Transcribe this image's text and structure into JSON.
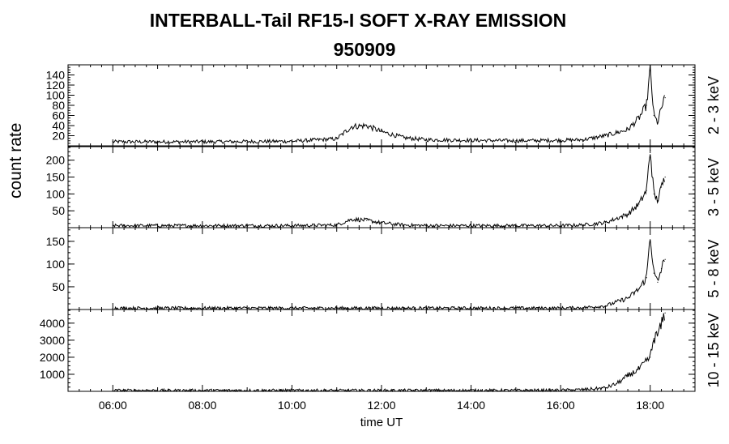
{
  "title_line1": "INTERBALL-Tail RF15-I SOFT X-RAY EMISSION",
  "title_line2": "950909",
  "ylabel": "count rate",
  "chart_data": {
    "type": "line",
    "title": "INTERBALL-Tail RF15-I SOFT X-RAY EMISSION 950909",
    "xlabel": "time UT",
    "ylabel": "count rate",
    "xlim": [
      "05:00",
      "19:00"
    ],
    "x_ticks": [
      "06:00",
      "08:00",
      "10:00",
      "12:00",
      "14:00",
      "16:00",
      "18:00"
    ],
    "panels": [
      {
        "name": "2 - 3 keV",
        "ylim": [
          0,
          160
        ],
        "y_ticks": [
          20,
          40,
          60,
          80,
          100,
          120,
          140
        ],
        "x": [
          "06:00",
          "08:00",
          "10:00",
          "11:00",
          "11:20",
          "11:40",
          "12:00",
          "12:30",
          "13:00",
          "15:00",
          "16:00",
          "16:30",
          "17:00",
          "17:30",
          "17:45",
          "17:55",
          "18:00",
          "18:05",
          "18:10",
          "18:15",
          "18:20"
        ],
        "y": [
          8,
          8,
          9,
          14,
          38,
          40,
          28,
          16,
          12,
          10,
          11,
          12,
          20,
          32,
          55,
          80,
          150,
          60,
          45,
          75,
          95
        ]
      },
      {
        "name": "3 - 5 keV",
        "ylim": [
          0,
          240
        ],
        "y_ticks": [
          50,
          100,
          150,
          200
        ],
        "x": [
          "06:00",
          "08:00",
          "10:00",
          "11:00",
          "11:20",
          "11:40",
          "12:00",
          "12:30",
          "13:00",
          "15:00",
          "16:00",
          "16:30",
          "17:00",
          "17:30",
          "17:45",
          "17:55",
          "18:00",
          "18:05",
          "18:10",
          "18:15",
          "18:20"
        ],
        "y": [
          6,
          6,
          6,
          8,
          25,
          22,
          14,
          8,
          6,
          6,
          6,
          8,
          15,
          40,
          70,
          110,
          230,
          100,
          80,
          120,
          150
        ]
      },
      {
        "name": "5 - 8 keV",
        "ylim": [
          0,
          180
        ],
        "y_ticks": [
          50,
          100,
          150
        ],
        "x": [
          "06:00",
          "08:00",
          "10:00",
          "11:00",
          "12:00",
          "13:00",
          "15:00",
          "16:00",
          "16:30",
          "17:00",
          "17:30",
          "17:45",
          "17:55",
          "18:00",
          "18:05",
          "18:10",
          "18:15",
          "18:20"
        ],
        "y": [
          3,
          3,
          3,
          3,
          3,
          3,
          3,
          3,
          4,
          8,
          25,
          45,
          70,
          165,
          80,
          60,
          90,
          110
        ]
      },
      {
        "name": "10 - 15 keV",
        "ylim": [
          0,
          4800
        ],
        "y_ticks": [
          1000,
          2000,
          3000,
          4000
        ],
        "x": [
          "06:00",
          "08:00",
          "10:00",
          "12:00",
          "14:00",
          "16:00",
          "16:30",
          "17:00",
          "17:15",
          "17:30",
          "17:45",
          "18:00",
          "18:05",
          "18:10",
          "18:15",
          "18:20"
        ],
        "y": [
          50,
          50,
          50,
          50,
          50,
          60,
          100,
          200,
          450,
          900,
          1300,
          2000,
          3100,
          3300,
          3900,
          4600
        ]
      }
    ],
    "grid": false
  }
}
